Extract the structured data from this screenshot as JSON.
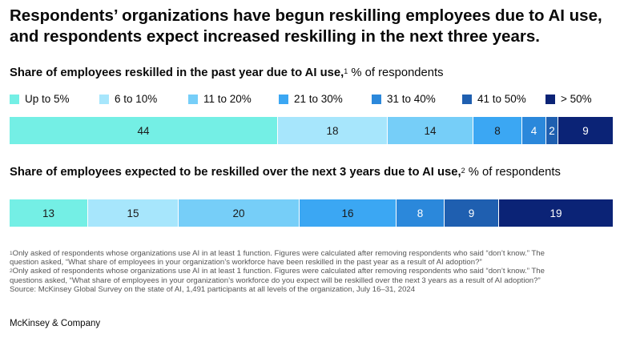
{
  "title": "Respondents’ organizations have begun reskilling employees due to AI use, and respondents expect increased reskilling in the next three years.",
  "legend": [
    {
      "label": "Up to 5%",
      "color": "#74efe5"
    },
    {
      "label": "6 to 10%",
      "color": "#a7e6fc"
    },
    {
      "label": "11 to 20%",
      "color": "#76cef8"
    },
    {
      "label": "21 to 30%",
      "color": "#3ba7f3"
    },
    {
      "label": "31 to 40%",
      "color": "#2b88db"
    },
    {
      "label": "41 to 50%",
      "color": "#1f5fb0"
    },
    {
      "label": "> 50%",
      "color": "#0b2376"
    }
  ],
  "chart_data": [
    {
      "type": "bar",
      "orientation": "horizontal-stacked",
      "title": "Share of employees reskilled in the past year due to AI use,",
      "title_note": "1",
      "unit": "% of respondents",
      "categories": [
        "Up to 5%",
        "6 to 10%",
        "11 to 20%",
        "21 to 30%",
        "31 to 40%",
        "41 to 50%",
        "> 50%"
      ],
      "values": [
        44,
        18,
        14,
        8,
        4,
        2,
        9
      ]
    },
    {
      "type": "bar",
      "orientation": "horizontal-stacked",
      "title": "Share of employees expected to be reskilled over the next 3 years due to AI use,",
      "title_note": "2",
      "unit": "% of respondents",
      "categories": [
        "Up to 5%",
        "6 to 10%",
        "11 to 20%",
        "21 to 30%",
        "31 to 40%",
        "41 to 50%",
        "> 50%"
      ],
      "values": [
        13,
        15,
        20,
        16,
        8,
        9,
        19
      ]
    }
  ],
  "footnotes": {
    "f1_mark": "1",
    "f1_line1": "Only asked of respondents whose organizations use AI in at least 1 function. Figures were calculated after removing respondents who said “don’t know.” The",
    "f1_line2": "question asked, “What share of employees in your organization’s workforce have been reskilled in the past year as a result of AI adoption?”",
    "f2_mark": "2",
    "f2_line1": "Only asked of respondents whose organizations use AI in at least 1 function. Figures were calculated after removing respondents who said “don’t know.” The",
    "f2_line2": "questions asked, “What share of employees in your organization’s workforce do you expect will be reskilled over the next 3 years as a result of AI adoption?”",
    "source": "Source: McKinsey Global Survey on the state of AI, 1,491 participants at all levels of the organization, July 16–31, 2024"
  },
  "brand": "McKinsey & Company"
}
